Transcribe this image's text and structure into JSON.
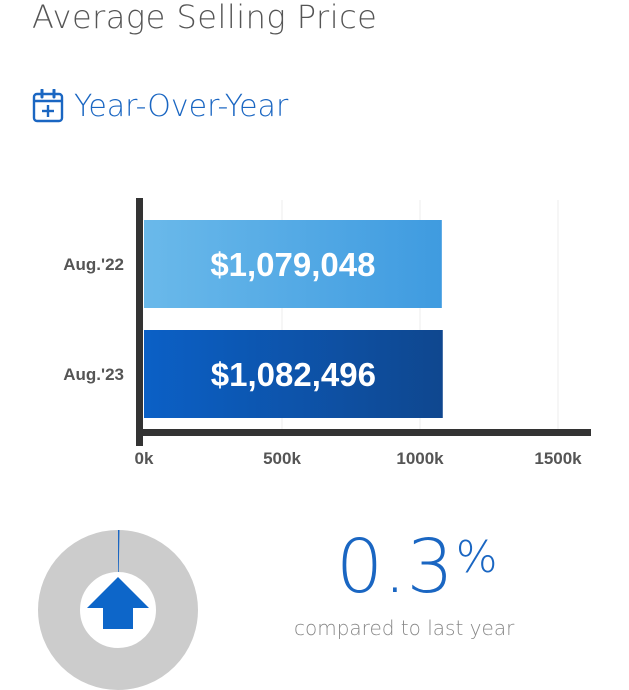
{
  "title": "Average Selling Price",
  "section": {
    "heading": "Year-Over-Year",
    "icon": "calendar-plus-icon"
  },
  "colors": {
    "accent": "#1a66c2",
    "bar_aug22_start": "#6ab9ea",
    "bar_aug22_end": "#3f9be0",
    "bar_aug23_start": "#0b60c6",
    "bar_aug23_end": "#0f478f",
    "axis": "#333333",
    "donut_ring": "#cccccc",
    "arrow": "#0d66c9"
  },
  "chart_data": {
    "type": "bar",
    "orientation": "horizontal",
    "categories": [
      "Aug.'22",
      "Aug.'23"
    ],
    "values": [
      1079048,
      1082496
    ],
    "data_labels": [
      "$1,079,048",
      "$1,082,496"
    ],
    "xlim": [
      0,
      1600000
    ],
    "xticks": [
      0,
      500000,
      1000000,
      1500000
    ],
    "xtick_labels": [
      "0k",
      "500k",
      "1000k",
      "1500k"
    ],
    "grid": true
  },
  "change": {
    "value": "0.3",
    "unit": "%",
    "caption": "compared to last year",
    "direction": "up",
    "arrow_icon": "arrow-up-icon",
    "fraction": 0.003
  }
}
